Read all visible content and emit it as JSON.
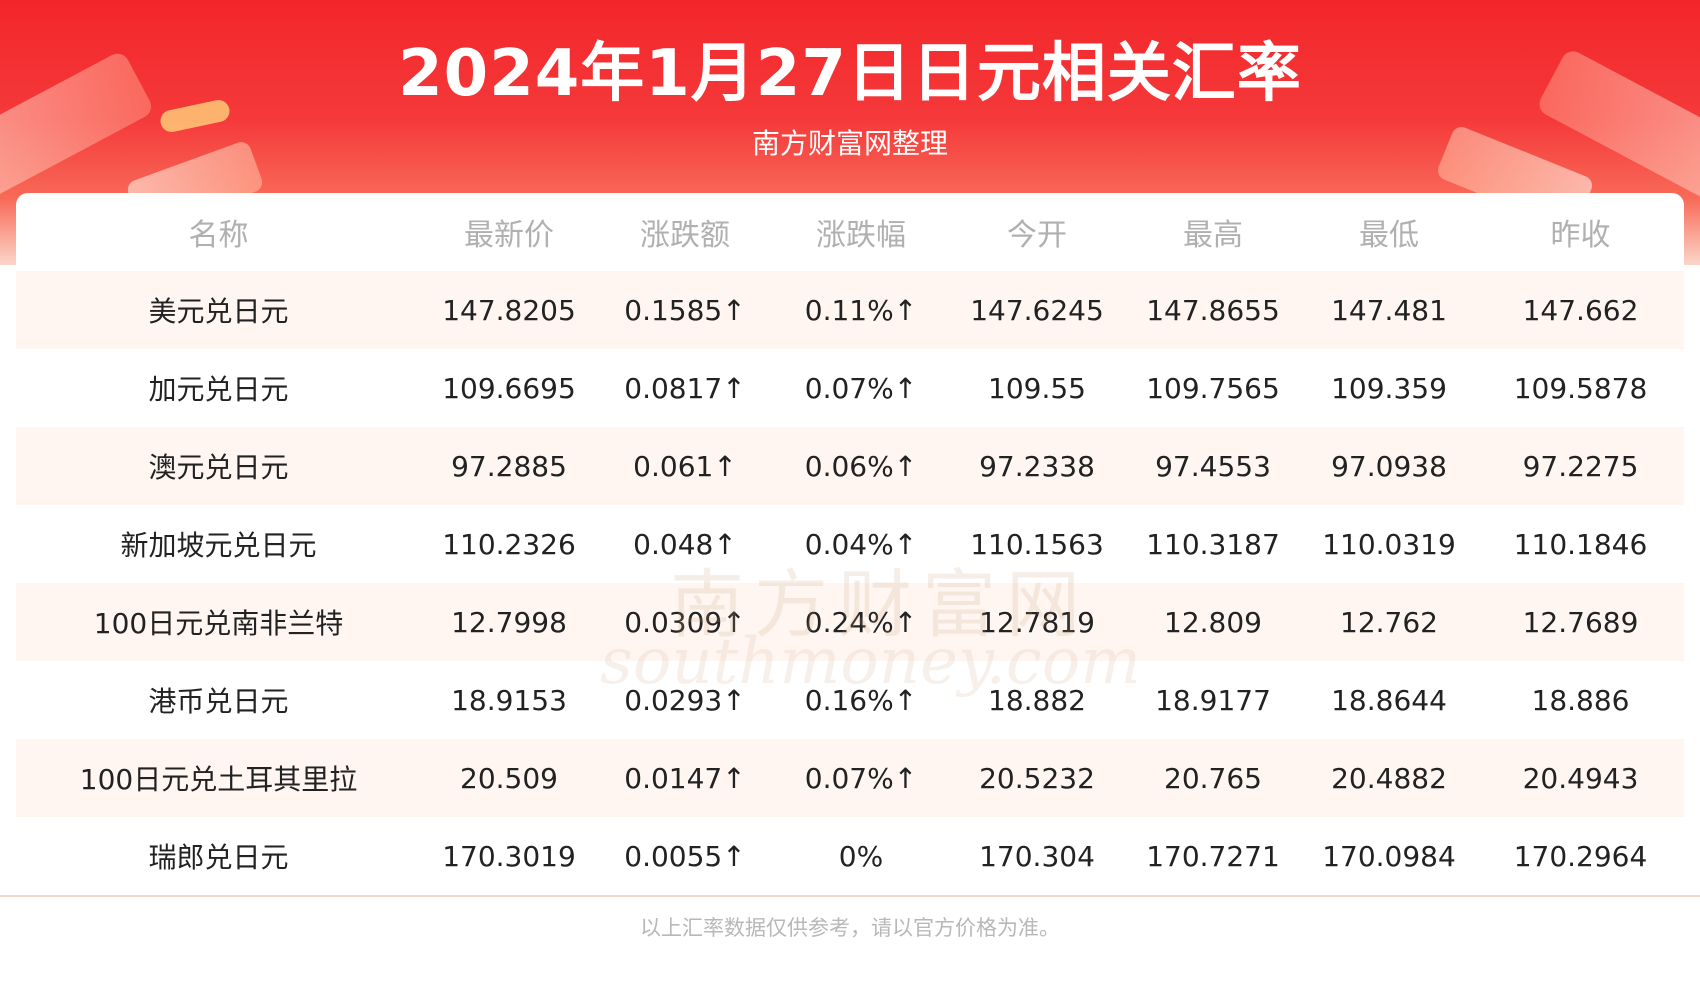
{
  "header": {
    "title": "2024年1月27日日元相关汇率",
    "subtitle": "南方财富网整理"
  },
  "watermark": {
    "cn": "南方财富网",
    "en": "southmoney.com"
  },
  "table": {
    "columns": [
      "名称",
      "最新价",
      "涨跌额",
      "涨跌幅",
      "今开",
      "最高",
      "最低",
      "昨收"
    ],
    "rows": [
      {
        "name": "美元兑日元",
        "latest": "147.8205",
        "change": "0.1585",
        "change_pct": "0.11%",
        "open": "147.6245",
        "high": "147.8655",
        "low": "147.481",
        "prev_close": "147.662"
      },
      {
        "name": "加元兑日元",
        "latest": "109.6695",
        "change": "0.0817",
        "change_pct": "0.07%",
        "open": "109.55",
        "high": "109.7565",
        "low": "109.359",
        "prev_close": "109.5878"
      },
      {
        "name": "澳元兑日元",
        "latest": "97.2885",
        "change": "0.061",
        "change_pct": "0.06%",
        "open": "97.2338",
        "high": "97.4553",
        "low": "97.0938",
        "prev_close": "97.2275"
      },
      {
        "name": "新加坡元兑日元",
        "latest": "110.2326",
        "change": "0.048",
        "change_pct": "0.04%",
        "open": "110.1563",
        "high": "110.3187",
        "low": "110.0319",
        "prev_close": "110.1846"
      },
      {
        "name": "100日元兑南非兰特",
        "latest": "12.7998",
        "change": "0.0309",
        "change_pct": "0.24%",
        "open": "12.7819",
        "high": "12.809",
        "low": "12.762",
        "prev_close": "12.7689"
      },
      {
        "name": "港币兑日元",
        "latest": "18.9153",
        "change": "0.0293",
        "change_pct": "0.16%",
        "open": "18.882",
        "high": "18.9177",
        "low": "18.8644",
        "prev_close": "18.886"
      },
      {
        "name": "100日元兑土耳其里拉",
        "latest": "20.509",
        "change": "0.0147",
        "change_pct": "0.07%",
        "open": "20.5232",
        "high": "20.765",
        "low": "20.4882",
        "prev_close": "20.4943"
      },
      {
        "name": "瑞郎兑日元",
        "latest": "170.3019",
        "change": "0.0055",
        "change_pct": "0%",
        "open": "170.304",
        "high": "170.7271",
        "low": "170.0984",
        "prev_close": "170.2964"
      }
    ]
  },
  "footer": {
    "note": "以上汇率数据仅供参考，请以官方价格为准。"
  },
  "colors": {
    "header_red": "#f2262a",
    "up_red": "#ee1c25",
    "row_tint": "#fff6f1",
    "header_text_gray": "#b0b0b0"
  }
}
